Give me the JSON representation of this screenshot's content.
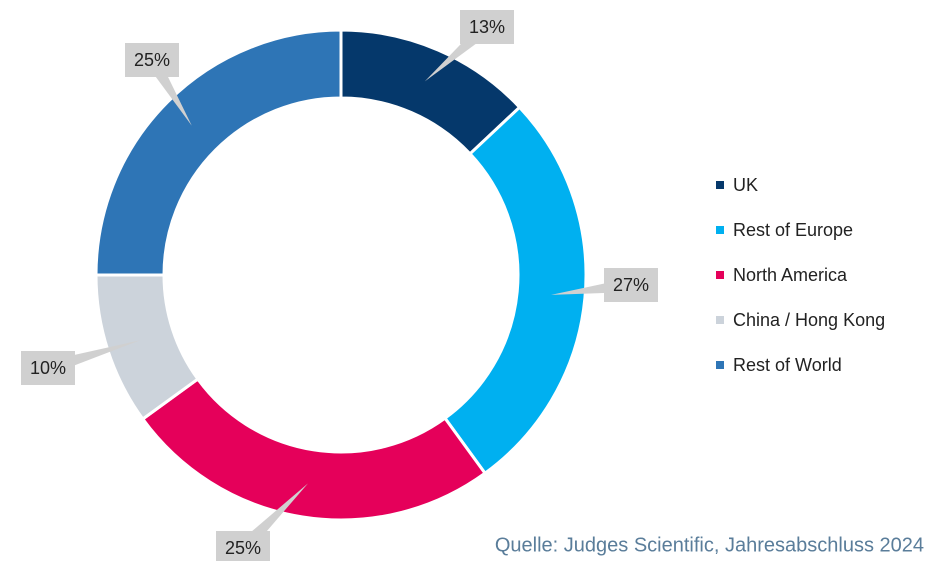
{
  "chart_data": {
    "type": "donut",
    "categories": [
      "UK",
      "Rest of Europe",
      "North America",
      "China / Hong Kong",
      "Rest of World"
    ],
    "values": [
      13,
      27,
      25,
      10,
      25
    ],
    "value_labels": [
      "13%",
      "27%",
      "25%",
      "10%",
      "25%"
    ],
    "colors": [
      "#05386b",
      "#00b0f0",
      "#e5005a",
      "#ccd3db",
      "#2e75b6"
    ],
    "legend": "right",
    "source": "Quelle:  Judges Scientific, Jahresabschluss 2024"
  }
}
